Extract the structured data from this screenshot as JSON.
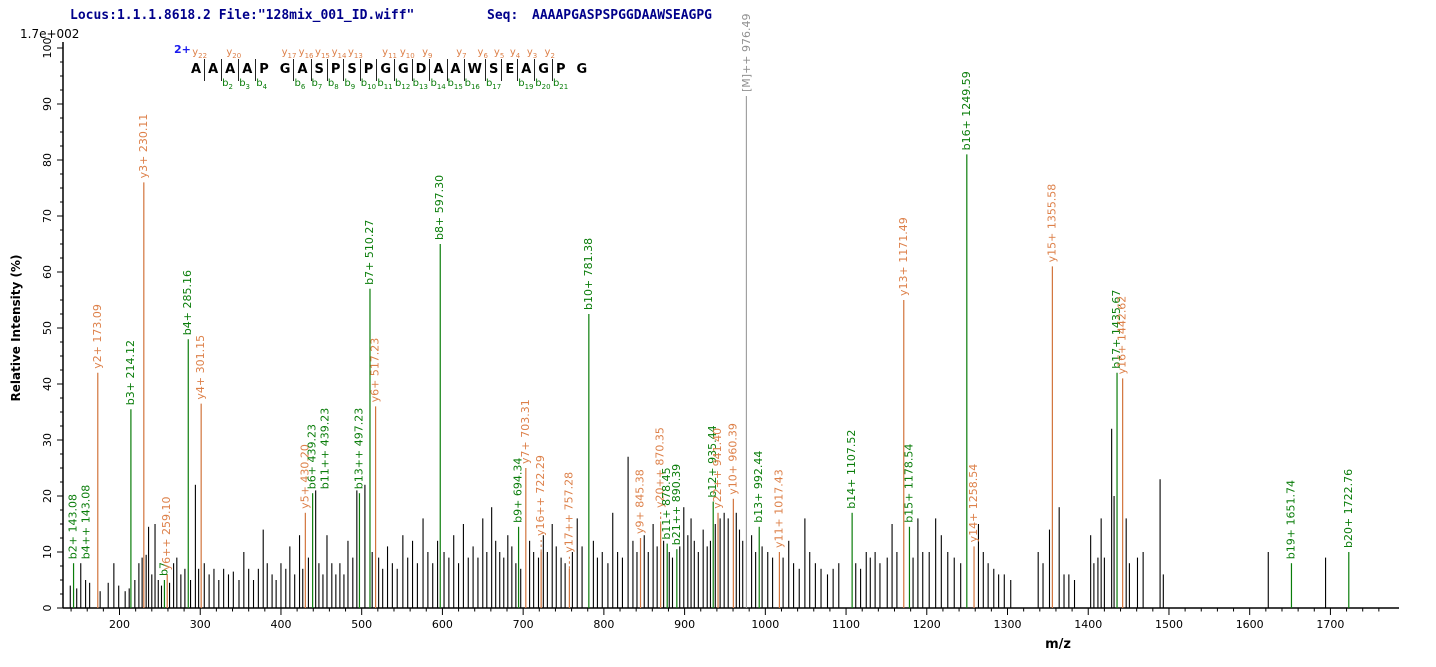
{
  "header": {
    "locus_file": "Locus:1.1.1.8618.2 File:\"128mix_001_ID.wiff\"",
    "seq_label": "Seq:",
    "seq_value": "AAAAPGASPSPGGDAAWSEAGPG",
    "scale_note": "1.7e+002"
  },
  "colors": {
    "b_ion": "#0a7d0a",
    "y_ion": "#d2743c",
    "y_ion_text": "#dd8049",
    "unlabeled_peak": "#000000",
    "precursor": "#909090",
    "header_text": "#00008b",
    "charge_text": "#1a1aee",
    "axis": "#000000"
  },
  "ladder": {
    "charge": "2+",
    "residues": [
      "A",
      "A",
      "A",
      "A",
      "P",
      "G",
      "A",
      "S",
      "P",
      "S",
      "P",
      "G",
      "G",
      "D",
      "A",
      "A",
      "W",
      "S",
      "E",
      "A",
      "G",
      "P",
      "G"
    ],
    "cuts": [
      {
        "after": 1,
        "y": 22,
        "b": null
      },
      {
        "after": 2,
        "y": null,
        "b": 2
      },
      {
        "after": 3,
        "y": 20,
        "b": 3
      },
      {
        "after": 4,
        "y": null,
        "b": 4
      },
      {
        "after": 6,
        "y": 17,
        "b": 6
      },
      {
        "after": 7,
        "y": 16,
        "b": 7
      },
      {
        "after": 8,
        "y": 15,
        "b": 8
      },
      {
        "after": 9,
        "y": 14,
        "b": 9
      },
      {
        "after": 10,
        "y": 13,
        "b": 10
      },
      {
        "after": 11,
        "y": null,
        "b": 11
      },
      {
        "after": 12,
        "y": 11,
        "b": 12
      },
      {
        "after": 13,
        "y": 10,
        "b": 13
      },
      {
        "after": 14,
        "y": 9,
        "b": 14
      },
      {
        "after": 15,
        "y": null,
        "b": 15
      },
      {
        "after": 16,
        "y": 7,
        "b": 16
      },
      {
        "after": 17,
        "y": 6,
        "b": 17
      },
      {
        "after": 18,
        "y": 5,
        "b": null
      },
      {
        "after": 19,
        "y": 4,
        "b": 19
      },
      {
        "after": 20,
        "y": 3,
        "b": 20
      },
      {
        "after": 21,
        "y": 2,
        "b": 21
      }
    ]
  },
  "chart_data": {
    "type": "bar",
    "variant": "ms2-fragmentation-spectrum",
    "xlabel": "m/z",
    "ylabel": "Relative  Intensity (%)",
    "xlim": [
      130,
      1780
    ],
    "ylim": [
      0,
      100
    ],
    "x_tick_labels": [
      "200",
      "300",
      "400",
      "500",
      "600",
      "700",
      "800",
      "900",
      "1000",
      "1100",
      "1200",
      "1300",
      "1400",
      "1500",
      "1600",
      "1700"
    ],
    "x_major_tick_step": 100,
    "x_minor_tick_step": 20,
    "y_major_tick_step": 10,
    "y_minor_tick_step": 2.5,
    "grid": false,
    "precursor": {
      "mz": 976.49,
      "label": "[M]++ 976.49",
      "intensity": 100
    },
    "labeled_peaks": [
      {
        "mz": 143.08,
        "intensity": 8,
        "ion": "b",
        "labels": [
          "b2+ 143.08",
          "b4++ 143.08"
        ]
      },
      {
        "mz": 173.09,
        "intensity": 42,
        "ion": "y",
        "labels": [
          "y2+ 173.09"
        ]
      },
      {
        "mz": 214.12,
        "intensity": 35.5,
        "ion": "b",
        "labels": [
          "b3+ 214.12"
        ]
      },
      {
        "mz": 230.11,
        "intensity": 76,
        "ion": "y",
        "labels": [
          "y3+ 230.11"
        ]
      },
      {
        "mz": 255.64,
        "intensity": 5,
        "ion": "b",
        "labels": [
          "b7"
        ]
      },
      {
        "mz": 259.1,
        "intensity": 6,
        "ion": "y",
        "labels": [
          "y6++ 259.10"
        ]
      },
      {
        "mz": 285.16,
        "intensity": 48,
        "ion": "b",
        "labels": [
          "b4+ 285.16"
        ]
      },
      {
        "mz": 301.15,
        "intensity": 36.5,
        "ion": "y",
        "labels": [
          "y4+ 301.15"
        ]
      },
      {
        "mz": 430.2,
        "intensity": 17,
        "ion": "y",
        "labels": [
          "y5+ 430.20"
        ]
      },
      {
        "mz": 439.23,
        "intensity": 20.5,
        "ion": "b",
        "labels": [
          "b6+ 439.23",
          "b11++ 439.23"
        ]
      },
      {
        "mz": 497.23,
        "intensity": 20.5,
        "ion": "b",
        "labels": [
          "b13++ 497.23"
        ]
      },
      {
        "mz": 510.27,
        "intensity": 57,
        "ion": "b",
        "labels": [
          "b7+ 510.27"
        ]
      },
      {
        "mz": 517.23,
        "intensity": 36,
        "ion": "y",
        "labels": [
          "y6+ 517.23"
        ]
      },
      {
        "mz": 597.3,
        "intensity": 65,
        "ion": "b",
        "labels": [
          "b8+ 597.30"
        ]
      },
      {
        "mz": 694.34,
        "intensity": 14.5,
        "ion": "b",
        "labels": [
          "b9+ 694.34"
        ]
      },
      {
        "mz": 703.31,
        "intensity": 25,
        "ion": "y",
        "labels": [
          "y7+ 703.31"
        ]
      },
      {
        "mz": 722.29,
        "intensity": 10,
        "ion": "y",
        "labels": [
          "y16++ 722.29"
        ],
        "dashed_leader": true
      },
      {
        "mz": 757.28,
        "intensity": 7,
        "ion": "y",
        "labels": [
          "y17++ 757.28"
        ],
        "dashed_leader": true
      },
      {
        "mz": 781.38,
        "intensity": 52.5,
        "ion": "b",
        "labels": [
          "b10+ 781.38"
        ]
      },
      {
        "mz": 845.38,
        "intensity": 12.5,
        "ion": "y",
        "labels": [
          "y9+ 845.38"
        ]
      },
      {
        "mz": 870.35,
        "intensity": 15,
        "ion": "y",
        "labels": [
          "y20++ 870.35"
        ],
        "dashed_leader": true
      },
      {
        "mz": 878.45,
        "intensity": 11.5,
        "ion": "b",
        "labels": [
          "b11+ 878.45"
        ]
      },
      {
        "mz": 890.39,
        "intensity": 10.5,
        "ion": "b",
        "labels": [
          "b21++ 890.39"
        ]
      },
      {
        "mz": 935.44,
        "intensity": 19,
        "ion": "b",
        "labels": [
          "b12+ 935.44"
        ]
      },
      {
        "mz": 941.4,
        "intensity": 17,
        "ion": "y",
        "labels": [
          "y22++ 941.40"
        ]
      },
      {
        "mz": 960.39,
        "intensity": 19.5,
        "ion": "y",
        "labels": [
          "y10+ 960.39"
        ]
      },
      {
        "mz": 992.44,
        "intensity": 14.5,
        "ion": "b",
        "labels": [
          "b13+ 992.44"
        ]
      },
      {
        "mz": 1017.43,
        "intensity": 10,
        "ion": "y",
        "labels": [
          "y11+ 1017.43"
        ]
      },
      {
        "mz": 1107.52,
        "intensity": 17,
        "ion": "b",
        "labels": [
          "b14+ 1107.52"
        ]
      },
      {
        "mz": 1171.49,
        "intensity": 55,
        "ion": "y",
        "labels": [
          "y13+ 1171.49"
        ]
      },
      {
        "mz": 1178.54,
        "intensity": 14.5,
        "ion": "b",
        "labels": [
          "b15+ 1178.54"
        ]
      },
      {
        "mz": 1249.59,
        "intensity": 81,
        "ion": "b",
        "labels": [
          "b16+ 1249.59"
        ]
      },
      {
        "mz": 1258.54,
        "intensity": 11,
        "ion": "y",
        "labels": [
          "y14+ 1258.54"
        ]
      },
      {
        "mz": 1355.58,
        "intensity": 61,
        "ion": "y",
        "labels": [
          "y15+ 1355.58"
        ]
      },
      {
        "mz": 1435.67,
        "intensity": 42,
        "ion": "b",
        "labels": [
          "b17+ 1435.67"
        ]
      },
      {
        "mz": 1442.62,
        "intensity": 41,
        "ion": "y",
        "labels": [
          "y16+ 1442.62"
        ]
      },
      {
        "mz": 1651.74,
        "intensity": 8,
        "ion": "b",
        "labels": [
          "b19+ 1651.74"
        ]
      },
      {
        "mz": 1722.76,
        "intensity": 10,
        "ion": "b",
        "labels": [
          "b20+ 1722.76"
        ]
      }
    ],
    "unlabeled_peaks": [
      [
        139,
        4
      ],
      [
        147,
        3.5
      ],
      [
        152,
        8
      ],
      [
        158,
        5
      ],
      [
        163,
        4.5
      ],
      [
        176,
        3
      ],
      [
        186,
        4.5
      ],
      [
        193,
        8
      ],
      [
        199,
        4
      ],
      [
        207,
        3
      ],
      [
        212,
        3.5
      ],
      [
        219,
        5
      ],
      [
        224,
        8
      ],
      [
        228,
        9
      ],
      [
        233,
        9.5
      ],
      [
        236,
        14.5
      ],
      [
        240,
        6
      ],
      [
        244,
        15
      ],
      [
        248,
        5
      ],
      [
        252,
        4
      ],
      [
        262,
        4.5
      ],
      [
        267,
        8
      ],
      [
        271,
        9
      ],
      [
        276,
        6
      ],
      [
        281,
        7
      ],
      [
        288,
        5
      ],
      [
        294,
        22
      ],
      [
        298,
        7
      ],
      [
        305,
        8
      ],
      [
        311,
        6
      ],
      [
        317,
        7
      ],
      [
        323,
        5
      ],
      [
        329,
        7
      ],
      [
        335,
        6
      ],
      [
        341,
        6.5
      ],
      [
        348,
        5
      ],
      [
        354,
        10
      ],
      [
        360,
        7
      ],
      [
        366,
        5
      ],
      [
        372,
        7
      ],
      [
        378,
        14
      ],
      [
        383,
        8
      ],
      [
        389,
        6
      ],
      [
        394,
        5
      ],
      [
        400,
        8
      ],
      [
        406,
        7
      ],
      [
        411,
        11
      ],
      [
        417,
        6
      ],
      [
        423,
        13
      ],
      [
        427,
        7
      ],
      [
        434,
        9
      ],
      [
        443,
        21
      ],
      [
        447,
        8
      ],
      [
        452,
        6
      ],
      [
        457,
        13
      ],
      [
        463,
        8
      ],
      [
        468,
        6
      ],
      [
        473,
        8
      ],
      [
        478,
        6
      ],
      [
        483,
        12
      ],
      [
        489,
        9
      ],
      [
        494,
        21
      ],
      [
        504,
        22
      ],
      [
        513,
        10
      ],
      [
        521,
        9
      ],
      [
        526,
        7
      ],
      [
        532,
        11
      ],
      [
        538,
        8
      ],
      [
        544,
        7
      ],
      [
        551,
        13
      ],
      [
        557,
        9
      ],
      [
        563,
        12
      ],
      [
        569,
        8
      ],
      [
        576,
        16
      ],
      [
        582,
        10
      ],
      [
        588,
        8
      ],
      [
        594,
        12
      ],
      [
        602,
        10
      ],
      [
        608,
        9
      ],
      [
        614,
        13
      ],
      [
        620,
        8
      ],
      [
        626,
        15
      ],
      [
        632,
        9
      ],
      [
        638,
        11
      ],
      [
        644,
        9
      ],
      [
        650,
        16
      ],
      [
        655,
        10
      ],
      [
        661,
        18
      ],
      [
        666,
        12
      ],
      [
        671,
        10
      ],
      [
        676,
        9
      ],
      [
        681,
        13
      ],
      [
        686,
        11
      ],
      [
        691,
        8
      ],
      [
        697,
        7
      ],
      [
        708,
        12
      ],
      [
        713,
        10
      ],
      [
        719,
        9
      ],
      [
        725,
        13
      ],
      [
        730,
        10
      ],
      [
        736,
        15
      ],
      [
        741,
        11
      ],
      [
        747,
        9
      ],
      [
        752,
        8
      ],
      [
        761,
        10
      ],
      [
        767,
        16
      ],
      [
        773,
        11
      ],
      [
        787,
        12
      ],
      [
        792,
        9
      ],
      [
        798,
        10
      ],
      [
        805,
        8
      ],
      [
        811,
        17
      ],
      [
        817,
        10
      ],
      [
        823,
        9
      ],
      [
        830,
        27
      ],
      [
        836,
        12
      ],
      [
        841,
        10
      ],
      [
        850,
        13
      ],
      [
        855,
        10
      ],
      [
        861,
        15
      ],
      [
        866,
        11
      ],
      [
        874,
        12
      ],
      [
        881,
        10
      ],
      [
        885,
        9
      ],
      [
        894,
        11
      ],
      [
        899,
        18
      ],
      [
        904,
        13
      ],
      [
        908,
        16
      ],
      [
        912,
        12
      ],
      [
        917,
        10
      ],
      [
        923,
        14
      ],
      [
        928,
        11
      ],
      [
        932,
        12
      ],
      [
        938,
        15
      ],
      [
        944,
        16
      ],
      [
        949,
        17
      ],
      [
        954,
        16
      ],
      [
        964,
        17
      ],
      [
        968,
        14
      ],
      [
        972,
        12
      ],
      [
        983,
        13
      ],
      [
        988,
        10
      ],
      [
        996,
        11
      ],
      [
        1003,
        10
      ],
      [
        1009,
        9
      ],
      [
        1022,
        9
      ],
      [
        1029,
        12
      ],
      [
        1035,
        8
      ],
      [
        1042,
        7
      ],
      [
        1049,
        16
      ],
      [
        1055,
        10
      ],
      [
        1062,
        8
      ],
      [
        1069,
        7
      ],
      [
        1077,
        6
      ],
      [
        1084,
        7
      ],
      [
        1091,
        8
      ],
      [
        1112,
        8
      ],
      [
        1118,
        7
      ],
      [
        1125,
        10
      ],
      [
        1130,
        9
      ],
      [
        1136,
        10
      ],
      [
        1142,
        8
      ],
      [
        1151,
        9
      ],
      [
        1157,
        15
      ],
      [
        1163,
        10
      ],
      [
        1183,
        9
      ],
      [
        1189,
        16
      ],
      [
        1195,
        10
      ],
      [
        1203,
        10
      ],
      [
        1211,
        16
      ],
      [
        1218,
        13
      ],
      [
        1226,
        10
      ],
      [
        1234,
        9
      ],
      [
        1242,
        8
      ],
      [
        1264,
        15
      ],
      [
        1270,
        10
      ],
      [
        1276,
        8
      ],
      [
        1283,
        7
      ],
      [
        1289,
        6
      ],
      [
        1296,
        6
      ],
      [
        1304,
        5
      ],
      [
        1338,
        10
      ],
      [
        1344,
        8
      ],
      [
        1352,
        14
      ],
      [
        1364,
        18
      ],
      [
        1370,
        6
      ],
      [
        1376,
        6
      ],
      [
        1383,
        5
      ],
      [
        1403,
        13
      ],
      [
        1407,
        8
      ],
      [
        1412,
        9
      ],
      [
        1416,
        16
      ],
      [
        1420,
        9
      ],
      [
        1429,
        32
      ],
      [
        1432,
        20
      ],
      [
        1447,
        16
      ],
      [
        1451,
        8
      ],
      [
        1461,
        9
      ],
      [
        1468,
        10
      ],
      [
        1489,
        23
      ],
      [
        1493,
        6
      ],
      [
        1623,
        10
      ],
      [
        1694,
        9
      ]
    ]
  }
}
